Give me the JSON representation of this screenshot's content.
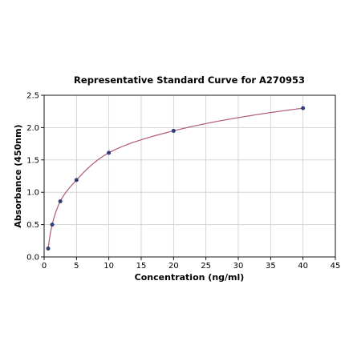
{
  "chart_data": {
    "type": "scatter",
    "title": "Representative Standard Curve for A270953",
    "xlabel": "Concentration (ng/ml)",
    "ylabel": "Absorbance (450nm)",
    "xlim": [
      0,
      45
    ],
    "ylim": [
      0,
      2.5
    ],
    "xticks": [
      0,
      5,
      10,
      15,
      20,
      25,
      30,
      35,
      40,
      45
    ],
    "yticks": [
      0.0,
      0.5,
      1.0,
      1.5,
      2.0,
      2.5
    ],
    "grid": true,
    "series": [
      {
        "points": [
          {
            "x": 0.625,
            "y": 0.13
          },
          {
            "x": 1.25,
            "y": 0.5
          },
          {
            "x": 2.5,
            "y": 0.86
          },
          {
            "x": 5,
            "y": 1.19
          },
          {
            "x": 10,
            "y": 1.61
          },
          {
            "x": 20,
            "y": 1.95
          },
          {
            "x": 40,
            "y": 2.3
          }
        ],
        "color": "#2e3f78",
        "fit_color": "#b05a78"
      }
    ]
  }
}
